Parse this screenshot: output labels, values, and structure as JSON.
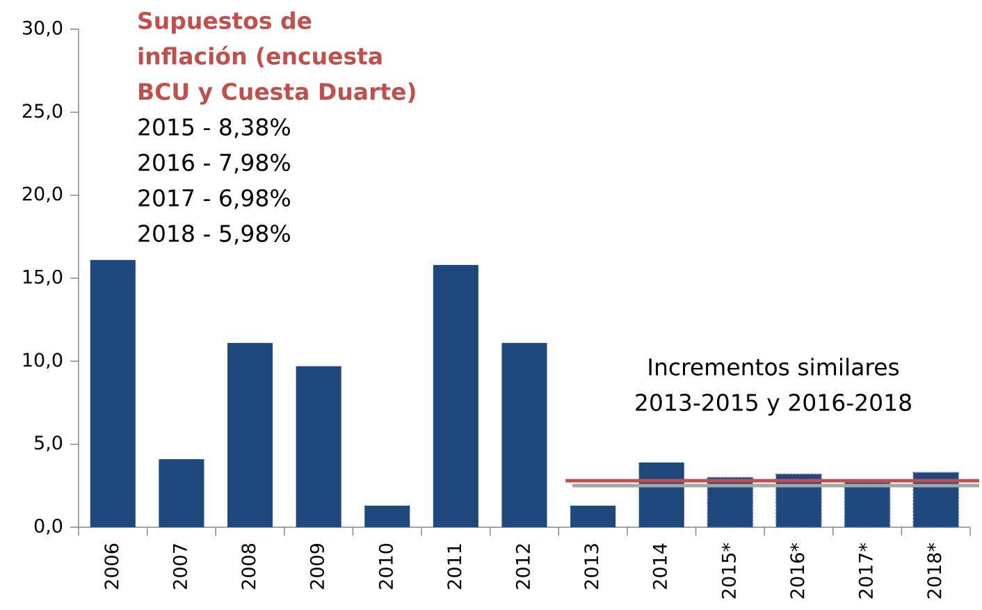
{
  "chart_data": {
    "type": "bar",
    "categories": [
      "2006",
      "2007",
      "2008",
      "2009",
      "2010",
      "2011",
      "2012",
      "2013",
      "2014",
      "2015*",
      "2016*",
      "2017*",
      "2018*"
    ],
    "values": [
      16.1,
      4.1,
      11.1,
      9.7,
      1.3,
      15.8,
      11.1,
      1.3,
      3.9,
      3.0,
      3.2,
      2.7,
      3.3
    ],
    "color": "#1f497d",
    "ylim": [
      0,
      30
    ],
    "yticks": [
      {
        "value": 0,
        "label": "0,0"
      },
      {
        "value": 5,
        "label": "5,0"
      },
      {
        "value": 10,
        "label": "10,0"
      },
      {
        "value": 15,
        "label": "15,0"
      },
      {
        "value": 20,
        "label": "20,0"
      },
      {
        "value": 25,
        "label": "25,0"
      },
      {
        "value": 30,
        "label": "30,0"
      }
    ],
    "grid": false,
    "reference_line": {
      "value": 2.8,
      "color": "#c0504d"
    },
    "annotation_title": [
      "Supuestos de",
      "inflación (encuesta",
      "BCU y Cuesta Duarte)"
    ],
    "annotation_title_color": "#c0504d",
    "annotation_lines": [
      "2015 - 8,38%",
      "2016 - 7,98%",
      "2017 - 6,98%",
      "2018 - 5,98%"
    ],
    "annotation_note": [
      "Incrementos similares",
      "2013-2015 y 2016-2018"
    ]
  }
}
